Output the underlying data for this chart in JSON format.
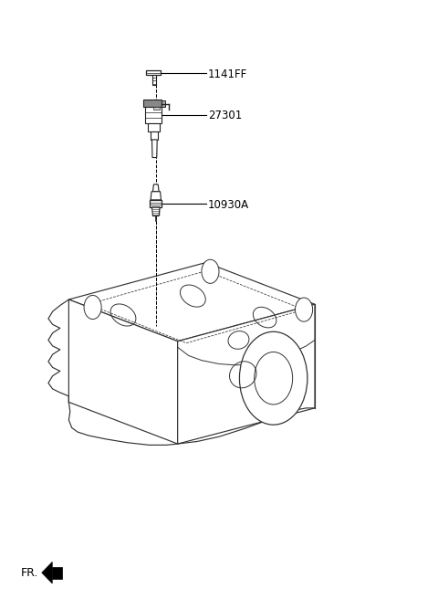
{
  "background_color": "#ffffff",
  "fig_width": 4.8,
  "fig_height": 6.56,
  "dpi": 100,
  "parts": [
    {
      "id": "1141FF",
      "label": "1141FF"
    },
    {
      "id": "27301",
      "label": "27301"
    },
    {
      "id": "10930A",
      "label": "10930A"
    }
  ],
  "line_color": "#000000",
  "part_color": "#222222",
  "text_color": "#000000",
  "label_fontsize": 8.5,
  "fr_label": "FR.",
  "fr_fontsize": 9
}
